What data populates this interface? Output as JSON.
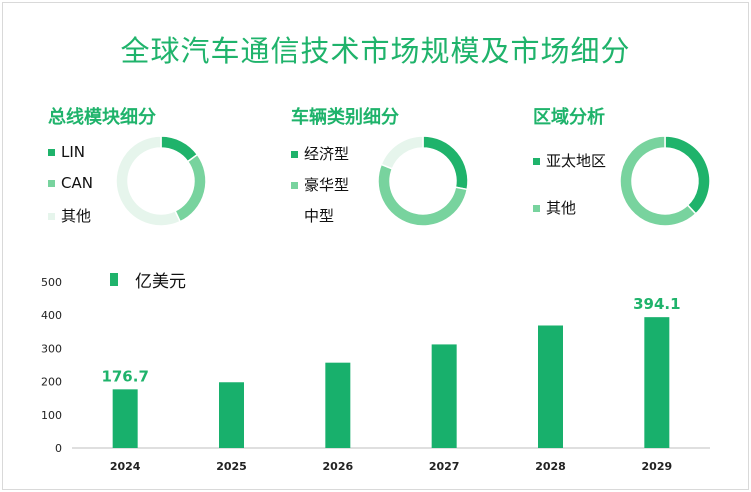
{
  "title": "全球汽车通信技术市场规模及市场细分",
  "colors": {
    "primary": "#1fb36b",
    "secondary": "#78d39e",
    "light": "#e6f5ec"
  },
  "sections": [
    {
      "title": "总线模块细分",
      "legend": [
        "LIN",
        "CAN",
        "其他"
      ]
    },
    {
      "title": "车辆类别细分",
      "legend": [
        "经济型",
        "豪华型",
        "中型"
      ]
    },
    {
      "title": "区域分析",
      "legend": [
        "亚太地区",
        "其他"
      ]
    }
  ],
  "donuts": [
    {
      "values": [
        15,
        28,
        57
      ],
      "colors": [
        "#1fb36b",
        "#78d39e",
        "#e6f5ec"
      ]
    },
    {
      "values": [
        28,
        53,
        19
      ],
      "colors": [
        "#1fb36b",
        "#78d39e",
        "#e6f5ec"
      ]
    },
    {
      "values": [
        38,
        62
      ],
      "colors": [
        "#1fb36b",
        "#78d39e"
      ]
    }
  ],
  "chart_data": {
    "type": "bar",
    "categories": [
      "2024",
      "2025",
      "2026",
      "2027",
      "2028",
      "2029"
    ],
    "series": [
      {
        "name": "亿美元",
        "values": [
          176.7,
          198,
          257,
          312,
          369,
          394.1
        ]
      }
    ],
    "data_labels": [
      "176.7",
      "",
      "",
      "",
      "",
      "394.1"
    ],
    "yticks": [
      "0",
      "100",
      "200",
      "300",
      "400",
      "500"
    ],
    "ylim": [
      0,
      500
    ],
    "legend_position": "top-left",
    "grid": false
  }
}
